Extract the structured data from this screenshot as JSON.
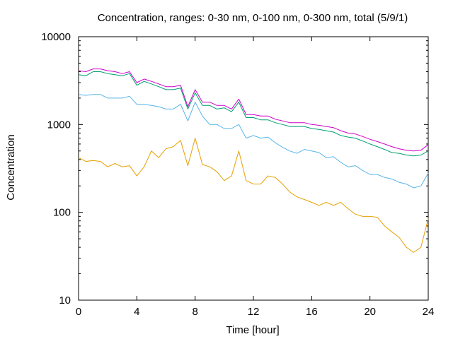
{
  "chart_data": {
    "type": "line",
    "title": "Concentration, ranges: 0-30 nm, 0-100 nm, 0-300 nm, total (5/9/1)",
    "xlabel": "Time [hour]",
    "ylabel": "Concentration",
    "xlim": [
      0,
      24
    ],
    "ylim": [
      10,
      10000
    ],
    "yscale": "log",
    "grid": false,
    "legend": "none",
    "x_ticks": [
      0,
      4,
      8,
      12,
      16,
      20,
      24
    ],
    "x_tick_labels": [
      "0",
      "4",
      "8",
      "12",
      "16",
      "20",
      "24"
    ],
    "y_ticks": [
      10,
      100,
      1000,
      10000
    ],
    "y_tick_labels": [
      "10",
      "100",
      "1000",
      "10000"
    ],
    "x": [
      0,
      0.5,
      1,
      1.5,
      2,
      2.5,
      3,
      3.5,
      4,
      4.5,
      5,
      5.5,
      6,
      6.5,
      7,
      7.5,
      8,
      8.5,
      9,
      9.5,
      10,
      10.5,
      11,
      11.5,
      12,
      12.5,
      13,
      13.5,
      14,
      14.5,
      15,
      15.5,
      16,
      16.5,
      17,
      17.5,
      18,
      18.5,
      19,
      19.5,
      20,
      20.5,
      21,
      21.5,
      22,
      22.5,
      23,
      23.5,
      24
    ],
    "series": [
      {
        "color": "#e6a000",
        "values": [
          420,
          380,
          390,
          380,
          330,
          360,
          330,
          340,
          260,
          330,
          500,
          420,
          530,
          560,
          660,
          340,
          700,
          350,
          330,
          290,
          230,
          260,
          500,
          230,
          210,
          210,
          260,
          250,
          210,
          170,
          150,
          140,
          130,
          120,
          130,
          120,
          130,
          110,
          95,
          90,
          90,
          88,
          70,
          60,
          52,
          40,
          35,
          40,
          85
        ]
      },
      {
        "color": "#56b4e9",
        "values": [
          2200,
          2150,
          2200,
          2200,
          2000,
          2000,
          2000,
          2100,
          1700,
          1700,
          1650,
          1600,
          1500,
          1500,
          1700,
          1100,
          1800,
          1250,
          1000,
          1000,
          900,
          900,
          1000,
          700,
          750,
          700,
          720,
          620,
          550,
          500,
          470,
          520,
          500,
          480,
          420,
          430,
          370,
          330,
          340,
          300,
          270,
          270,
          250,
          240,
          220,
          210,
          190,
          200,
          280
        ]
      },
      {
        "color": "#009e73",
        "values": [
          3700,
          3600,
          4000,
          4000,
          3800,
          3700,
          3600,
          3800,
          2800,
          3100,
          2900,
          2700,
          2500,
          2500,
          2600,
          1500,
          2300,
          1650,
          1650,
          1500,
          1550,
          1400,
          1800,
          1200,
          1200,
          1130,
          1130,
          1050,
          1000,
          950,
          950,
          950,
          900,
          880,
          850,
          820,
          750,
          720,
          700,
          650,
          600,
          560,
          520,
          480,
          470,
          450,
          440,
          450,
          500
        ]
      },
      {
        "color": "#cc00cc",
        "values": [
          4100,
          4000,
          4300,
          4300,
          4100,
          4000,
          3800,
          4000,
          3000,
          3300,
          3100,
          2900,
          2700,
          2700,
          2800,
          1600,
          2500,
          1800,
          1800,
          1650,
          1650,
          1500,
          1950,
          1300,
          1300,
          1250,
          1250,
          1150,
          1100,
          1050,
          1050,
          1050,
          1000,
          980,
          950,
          920,
          850,
          800,
          780,
          730,
          680,
          640,
          600,
          560,
          530,
          510,
          500,
          510,
          590
        ]
      }
    ]
  }
}
